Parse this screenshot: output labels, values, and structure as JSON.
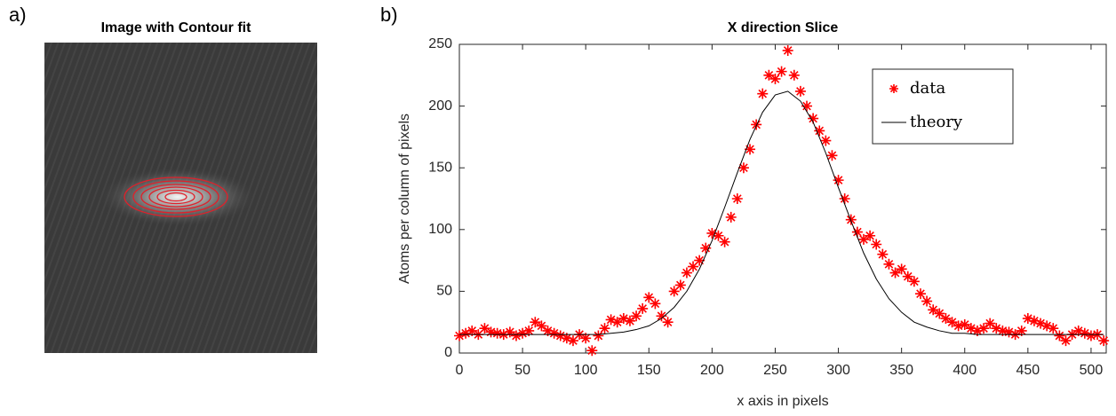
{
  "chart_data": [
    {
      "type": "image",
      "panel_label": "a)",
      "title": "Image with Contour fit"
    },
    {
      "type": "scatter",
      "panel_label": "b)",
      "title": "X direction Slice",
      "xlabel": "x axis in pixels",
      "ylabel": "Atoms per column of pixels",
      "xlim": [
        0,
        512
      ],
      "ylim": [
        0,
        250
      ],
      "xticks": [
        0,
        50,
        100,
        150,
        200,
        250,
        300,
        350,
        400,
        450,
        500
      ],
      "yticks": [
        0,
        50,
        100,
        150,
        200,
        250
      ],
      "legend": "northeast",
      "grid": false,
      "series": [
        {
          "name": "data",
          "color": "#ff0000",
          "style": "asterisk",
          "x": [
            0,
            5,
            10,
            15,
            20,
            25,
            30,
            35,
            40,
            45,
            50,
            55,
            60,
            65,
            70,
            75,
            80,
            85,
            90,
            95,
            100,
            105,
            110,
            115,
            120,
            125,
            130,
            135,
            140,
            145,
            150,
            155,
            160,
            165,
            170,
            175,
            180,
            185,
            190,
            195,
            200,
            205,
            210,
            215,
            220,
            225,
            230,
            235,
            240,
            245,
            250,
            255,
            260,
            265,
            270,
            275,
            280,
            285,
            290,
            295,
            300,
            305,
            310,
            315,
            320,
            325,
            330,
            335,
            340,
            345,
            350,
            355,
            360,
            365,
            370,
            375,
            380,
            385,
            390,
            395,
            400,
            405,
            410,
            415,
            420,
            425,
            430,
            435,
            440,
            445,
            450,
            455,
            460,
            465,
            470,
            475,
            480,
            485,
            490,
            495,
            500,
            505,
            510
          ],
          "values": [
            14,
            16,
            18,
            15,
            20,
            17,
            16,
            15,
            17,
            14,
            16,
            18,
            25,
            22,
            18,
            16,
            14,
            12,
            10,
            15,
            12,
            2,
            14,
            20,
            27,
            25,
            28,
            26,
            30,
            36,
            45,
            40,
            30,
            25,
            50,
            55,
            65,
            70,
            75,
            85,
            97,
            95,
            90,
            110,
            125,
            150,
            165,
            185,
            210,
            225,
            222,
            228,
            245,
            225,
            212,
            200,
            190,
            180,
            172,
            160,
            140,
            125,
            108,
            98,
            92,
            95,
            88,
            80,
            72,
            65,
            68,
            62,
            58,
            48,
            42,
            35,
            32,
            28,
            25,
            22,
            23,
            20,
            18,
            20,
            24,
            20,
            18,
            17,
            15,
            18,
            28,
            26,
            24,
            22,
            20,
            14,
            10,
            15,
            18,
            16,
            14,
            15,
            10
          ]
        },
        {
          "name": "theory",
          "color": "#000000",
          "style": "line",
          "x": [
            0,
            10,
            20,
            30,
            40,
            50,
            60,
            70,
            80,
            90,
            100,
            110,
            120,
            130,
            140,
            150,
            160,
            170,
            180,
            190,
            200,
            210,
            220,
            230,
            240,
            250,
            260,
            270,
            280,
            290,
            300,
            310,
            320,
            330,
            340,
            350,
            360,
            370,
            380,
            390,
            400,
            410,
            420,
            430,
            440,
            450,
            460,
            470,
            480,
            490,
            500,
            510
          ],
          "values": [
            15,
            15,
            15,
            15,
            15,
            15,
            15,
            15,
            15,
            15,
            15,
            15,
            16,
            17,
            19,
            22,
            28,
            37,
            50,
            68,
            91,
            118,
            146,
            173,
            195,
            209,
            212,
            204,
            187,
            162,
            134,
            107,
            81,
            60,
            44,
            33,
            25,
            21,
            18,
            16,
            16,
            15,
            15,
            15,
            15,
            15,
            15,
            15,
            15,
            15,
            15,
            15
          ]
        }
      ]
    }
  ]
}
